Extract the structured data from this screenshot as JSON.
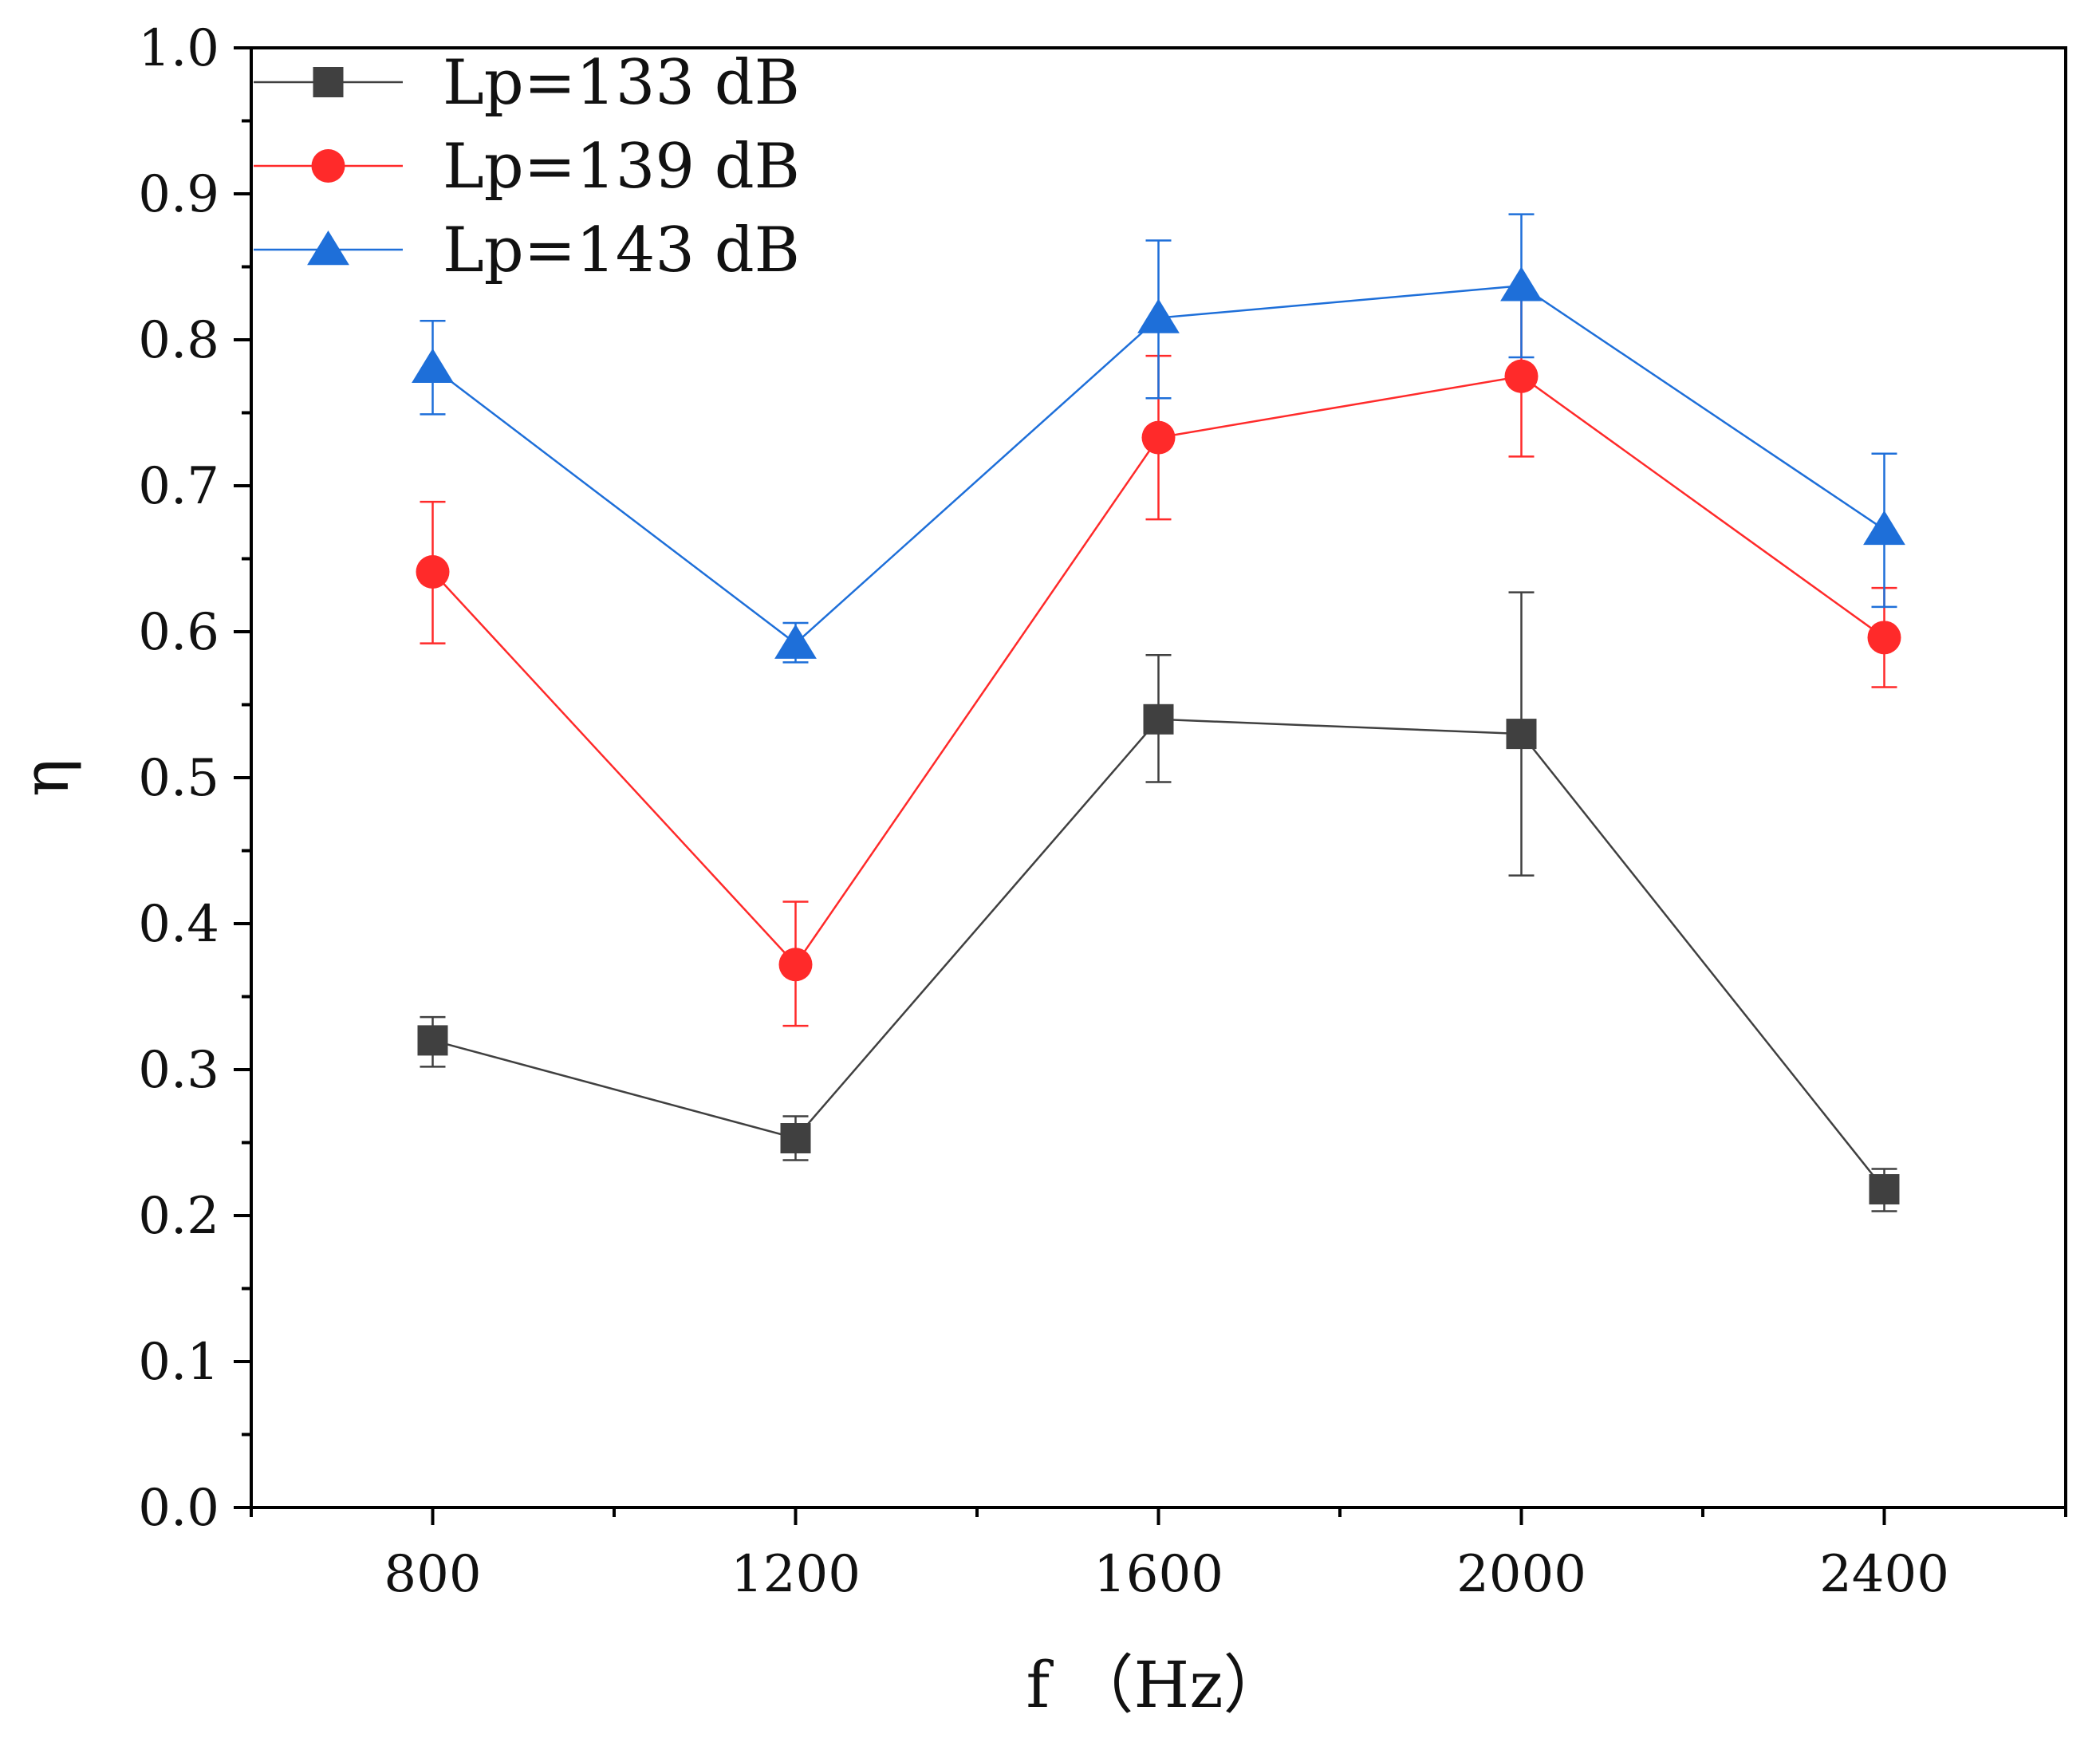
{
  "chart_data": {
    "type": "line",
    "title": "",
    "xlabel": "f （Hz）",
    "ylabel": "η",
    "xlim": [
      600,
      2600
    ],
    "ylim": [
      0.0,
      1.0
    ],
    "x": [
      800,
      1200,
      1600,
      2000,
      2400
    ],
    "x_tick_values": [
      800,
      1200,
      1600,
      2000,
      2400
    ],
    "x_tick_labels": [
      "800",
      "1200",
      "1600",
      "2000",
      "2400"
    ],
    "x_minor_ticks": [
      600,
      1000,
      1400,
      1800,
      2200,
      2600
    ],
    "y_tick_values": [
      0.0,
      0.1,
      0.2,
      0.3,
      0.4,
      0.5,
      0.6,
      0.7,
      0.8,
      0.9,
      1.0
    ],
    "y_tick_labels": [
      "0.0",
      "0.1",
      "0.2",
      "0.3",
      "0.4",
      "0.5",
      "0.6",
      "0.7",
      "0.8",
      "0.9",
      "1.0"
    ],
    "y_minor_ticks": [
      0.05,
      0.15,
      0.25,
      0.35,
      0.45,
      0.55,
      0.65,
      0.75,
      0.85,
      0.95
    ],
    "grid": false,
    "legend_position": "top-left",
    "series": [
      {
        "name": "Lp=133  dB",
        "color": "#404040",
        "marker": "square",
        "values": [
          0.32,
          0.253,
          0.54,
          0.53,
          0.218
        ],
        "error_lower": [
          0.302,
          0.238,
          0.497,
          0.433,
          0.203
        ],
        "error_upper": [
          0.336,
          0.268,
          0.584,
          0.627,
          0.232
        ]
      },
      {
        "name": "Lp=139  dB",
        "color": "#ff2a2a",
        "marker": "circle",
        "values": [
          0.641,
          0.372,
          0.733,
          0.775,
          0.596
        ],
        "error_lower": [
          0.592,
          0.33,
          0.677,
          0.72,
          0.562
        ],
        "error_upper": [
          0.689,
          0.415,
          0.789,
          0.829,
          0.63
        ]
      },
      {
        "name": "Lp=143  dB",
        "color": "#1e6fd9",
        "marker": "triangle",
        "values": [
          0.781,
          0.592,
          0.815,
          0.837,
          0.67
        ],
        "error_lower": [
          0.749,
          0.579,
          0.76,
          0.788,
          0.617
        ],
        "error_upper": [
          0.813,
          0.606,
          0.868,
          0.886,
          0.722
        ]
      }
    ]
  }
}
